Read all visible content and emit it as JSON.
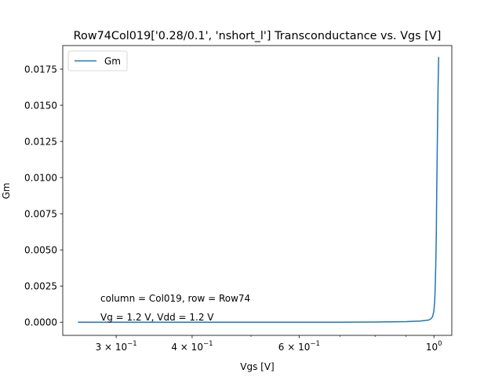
{
  "chart_data": {
    "type": "line",
    "title": "Row74Col019['0.28/0.1', 'nshort_l'] Transconductance vs. Vgs [V]",
    "xlabel": "Vgs [V]",
    "ylabel": "Gm",
    "xscale": "log",
    "xlim": [
      0.245,
      1.07
    ],
    "ylim": [
      -0.00091,
      0.01913
    ],
    "grid": false,
    "legend": {
      "placement": "top-left",
      "entries": [
        "Gm"
      ]
    },
    "x_ticks": [
      {
        "value": 0.3,
        "label": "3 × 10^-1",
        "base": "3 × 10",
        "exp": "−1"
      },
      {
        "value": 0.4,
        "label": "4 × 10^-1",
        "base": "4 × 10",
        "exp": "−1"
      },
      {
        "value": 0.6,
        "label": "6 × 10^-1",
        "base": "6 × 10",
        "exp": "−1"
      },
      {
        "value": 1.0,
        "label": "10^0",
        "base": "10",
        "exp": "0"
      }
    ],
    "x_minor_ticks": [
      0.5,
      0.7,
      0.8,
      0.9
    ],
    "y_ticks": [
      {
        "value": 0.0,
        "label": "0.0000"
      },
      {
        "value": 0.0025,
        "label": "0.0025"
      },
      {
        "value": 0.005,
        "label": "0.0050"
      },
      {
        "value": 0.0075,
        "label": "0.0075"
      },
      {
        "value": 0.01,
        "label": "0.0100"
      },
      {
        "value": 0.0125,
        "label": "0.0125"
      },
      {
        "value": 0.015,
        "label": "0.0150"
      },
      {
        "value": 0.0175,
        "label": "0.0175"
      }
    ],
    "annotations": [
      "column = Col019, row = Row74",
      "Vg = 1.2 V, Vdd = 1.2 V"
    ],
    "series": [
      {
        "name": "Gm",
        "color": "#1f77b4",
        "x": [
          0.26,
          0.3,
          0.4,
          0.5,
          0.6,
          0.7,
          0.8,
          0.9,
          0.95,
          0.98,
          0.99,
          0.995,
          1.0,
          1.003,
          1.005,
          1.007,
          1.009,
          1.01,
          1.012,
          1.014,
          1.016,
          1.018
        ],
        "y": [
          0.0,
          0.0,
          0.0,
          0.0,
          0.0,
          0.0,
          1e-05,
          4e-05,
          8e-05,
          0.00015,
          0.00025,
          0.0004,
          0.0008,
          0.0015,
          0.0025,
          0.004,
          0.006,
          0.008,
          0.011,
          0.014,
          0.0165,
          0.0183
        ]
      }
    ]
  }
}
